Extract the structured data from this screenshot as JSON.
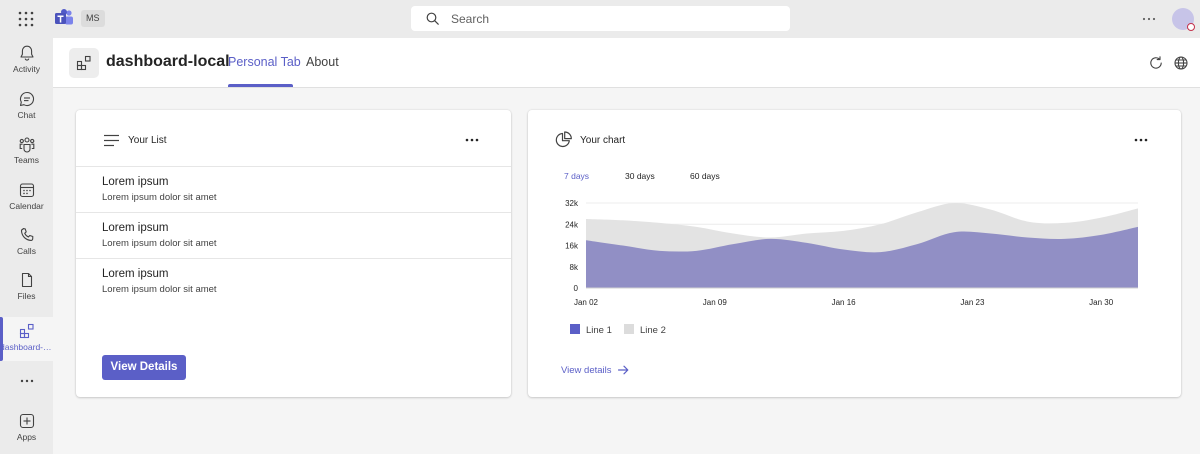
{
  "topbar": {
    "org_badge": "MS",
    "search_placeholder": "Search",
    "search_value": ""
  },
  "rail": {
    "items": [
      {
        "label": "Activity",
        "icon": "bell-icon"
      },
      {
        "label": "Chat",
        "icon": "chat-icon"
      },
      {
        "label": "Teams",
        "icon": "teams-icon"
      },
      {
        "label": "Calendar",
        "icon": "calendar-icon"
      },
      {
        "label": "Calls",
        "icon": "phone-icon"
      },
      {
        "label": "Files",
        "icon": "file-icon"
      },
      {
        "label": "dashboard-local",
        "icon": "apps-grid-icon"
      },
      {
        "label": "Apps",
        "icon": "add-app-icon"
      }
    ]
  },
  "header": {
    "title": "dashboard-local",
    "tabs": [
      {
        "label": "Personal Tab"
      },
      {
        "label": "About"
      }
    ]
  },
  "list_card": {
    "title": "Your List",
    "items": [
      {
        "title": "Lorem ipsum",
        "subtitle": "Lorem ipsum dolor sit amet"
      },
      {
        "title": "Lorem ipsum",
        "subtitle": "Lorem ipsum dolor sit amet"
      },
      {
        "title": "Lorem ipsum",
        "subtitle": "Lorem ipsum dolor sit amet"
      }
    ],
    "button_label": "View Details"
  },
  "chart_card": {
    "title": "Your chart",
    "ranges": [
      {
        "label": "7 days"
      },
      {
        "label": "30 days"
      },
      {
        "label": "60 days"
      }
    ],
    "view_link": "View details"
  },
  "colors": {
    "accent": "#5b5fc7",
    "line1": "#8a88c2",
    "line2": "#e3e3e3"
  },
  "chart_data": {
    "type": "area",
    "title": "",
    "xlabel": "",
    "ylabel": "",
    "ylim": [
      0,
      32000
    ],
    "yticks": [
      0,
      8000,
      16000,
      24000,
      32000
    ],
    "ytick_labels": [
      "0",
      "8k",
      "16k",
      "24k",
      "32k"
    ],
    "xticks": [
      1,
      8,
      15,
      22,
      29
    ],
    "xtick_labels": [
      "Jan 02",
      "Jan 09",
      "Jan 16",
      "Jan 23",
      "Jan 30"
    ],
    "x": [
      "Jan 01",
      "Jan 03",
      "Jan 05",
      "Jan 07",
      "Jan 09",
      "Jan 11",
      "Jan 13",
      "Jan 15",
      "Jan 17",
      "Jan 19",
      "Jan 21",
      "Jan 23",
      "Jan 25",
      "Jan 27",
      "Jan 29",
      "Jan 31"
    ],
    "legend": "bottom-left",
    "series": [
      {
        "name": "Line 1",
        "values": [
          18000,
          16000,
          14000,
          14000,
          16500,
          18500,
          17000,
          14500,
          13500,
          16500,
          21000,
          20500,
          19000,
          18500,
          20000,
          23000
        ]
      },
      {
        "name": "Line 2",
        "values": [
          26000,
          25500,
          24500,
          23000,
          20500,
          19000,
          20500,
          21500,
          24000,
          28500,
          32000,
          29500,
          25000,
          24500,
          26500,
          30000
        ]
      }
    ]
  }
}
